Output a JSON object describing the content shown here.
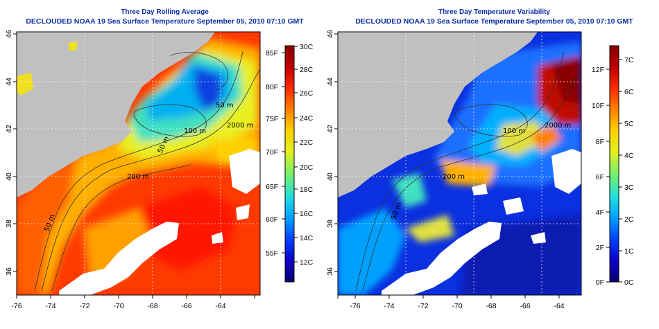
{
  "panels": [
    {
      "title_line1": "Three Day Rolling Average",
      "title_line2": "DECLOUDED NOAA 19 Sea Surface Temperature September 05, 2010 07:10 GMT",
      "x_ticks": [
        "-76",
        "-74",
        "-72",
        "-70",
        "-68",
        "-66",
        "-64"
      ],
      "y_ticks": [
        "36",
        "38",
        "40",
        "42",
        "44",
        "46"
      ],
      "contour_labels": [
        "50 m",
        "200 m",
        "100 m",
        "50 m",
        "2000 m",
        "50 m"
      ],
      "colorbar": {
        "left_ticks": [
          "85F",
          "80F",
          "75F",
          "70F",
          "65F",
          "60F",
          "55F"
        ],
        "right_ticks": [
          "30C",
          "28C",
          "26C",
          "24C",
          "22C",
          "20C",
          "18C",
          "16C",
          "14C",
          "12C"
        ],
        "colors": [
          "#08006e",
          "#1000c8",
          "#0040ff",
          "#00a0ff",
          "#20e0e0",
          "#70f070",
          "#e0f020",
          "#ffd000",
          "#ff8000",
          "#ff2a00",
          "#c00000",
          "#8a0000"
        ]
      }
    },
    {
      "title_line1": "Three Day Temperature Variability",
      "title_line2": "DECLOUDED NOAA 19 Sea Surface Temperature September 05, 2010 07:10 GMT",
      "x_ticks": [
        "-76",
        "-74",
        "-72",
        "-70",
        "-68",
        "-66",
        "-64"
      ],
      "y_ticks": [
        "36",
        "38",
        "40",
        "42",
        "44",
        "46"
      ],
      "contour_labels": [
        "50 m",
        "200 m",
        "100 m",
        "2000 m"
      ],
      "colorbar": {
        "left_ticks": [
          "12F",
          "10F",
          "8F",
          "6F",
          "4F",
          "2F",
          "0F"
        ],
        "right_ticks": [
          "7C",
          "6C",
          "5C",
          "4C",
          "3C",
          "2C",
          "1C",
          "0C"
        ],
        "colors": [
          "#08006e",
          "#1000c8",
          "#0040ff",
          "#00a0ff",
          "#20e0e0",
          "#70f070",
          "#e0f020",
          "#ffd000",
          "#ff8000",
          "#ff2a00",
          "#c00000",
          "#8a0000"
        ]
      }
    }
  ]
}
